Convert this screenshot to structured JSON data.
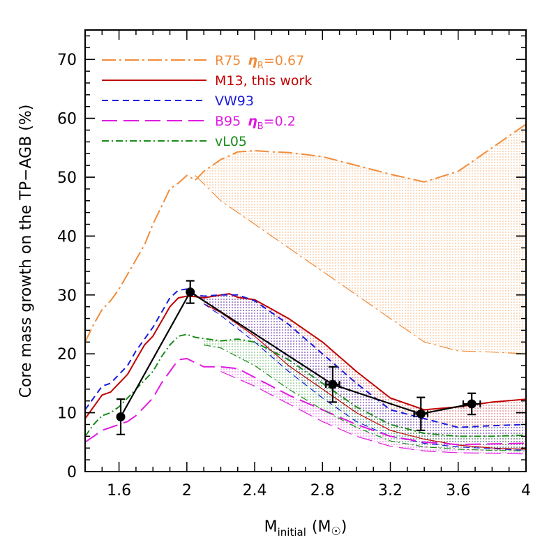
{
  "chart_data": {
    "type": "line",
    "xlabel": "M",
    "xlabel_sub": "initial",
    "xlabel_unit_open": "(M",
    "xlabel_unit_close": ")",
    "ylabel": "Core mass growth on the TP−AGB (%)",
    "xlim": [
      1.4,
      4.0
    ],
    "ylim": [
      0,
      75
    ],
    "xticks": [
      1.6,
      2.0,
      2.4,
      2.8,
      3.2,
      3.6,
      4.0
    ],
    "xtick_labels": [
      "1.6",
      "2",
      "2.4",
      "2.8",
      "3.2",
      "3.6",
      "4"
    ],
    "yticks": [
      0,
      10,
      20,
      30,
      40,
      50,
      60,
      70
    ],
    "ytick_labels": [
      "0",
      "10",
      "20",
      "30",
      "40",
      "50",
      "60",
      "70"
    ],
    "legend_position": "top-left",
    "series": [
      {
        "name": "R75",
        "legend_label": "R75",
        "legend_eta": "η",
        "legend_eta_sub": "R",
        "legend_eta_value": "=0.67",
        "color": "#f28c3a",
        "style": "dash-dot-long",
        "upper_x": [
          1.4,
          1.45,
          1.5,
          1.55,
          1.6,
          1.65,
          1.7,
          1.75,
          1.8,
          1.85,
          1.9,
          1.95,
          2.0,
          2.05,
          2.1,
          2.2,
          2.3,
          2.4,
          2.5,
          2.6,
          2.8,
          3.0,
          3.2,
          3.4,
          3.6,
          3.8,
          4.0
        ],
        "upper_y": [
          22,
          25,
          27.5,
          29,
          31,
          33.5,
          36,
          38.5,
          42,
          45,
          48,
          49,
          50.3,
          49.5,
          51,
          53,
          54.3,
          54.5,
          54.3,
          54.2,
          53.5,
          52,
          50.5,
          49.2,
          51,
          55,
          59
        ],
        "lower_x": [
          2.05,
          2.2,
          2.4,
          2.6,
          2.8,
          3.0,
          3.2,
          3.4,
          3.6,
          3.8,
          4.0
        ],
        "lower_y": [
          50.3,
          46,
          42,
          38,
          34,
          30,
          26,
          22,
          20.5,
          20.3,
          20
        ]
      },
      {
        "name": "M13",
        "legend_label": "M13, this work",
        "color": "#c00000",
        "style": "solid",
        "upper_x": [
          1.4,
          1.45,
          1.5,
          1.55,
          1.6,
          1.65,
          1.7,
          1.75,
          1.8,
          1.85,
          1.9,
          1.95,
          2.0,
          2.05,
          2.1,
          2.2,
          2.25,
          2.3,
          2.4,
          2.6,
          2.8,
          3.0,
          3.2,
          3.4,
          3.6,
          3.8,
          4.0
        ],
        "upper_y": [
          9,
          11,
          13,
          13.5,
          15,
          16.5,
          19,
          21.5,
          23,
          25.5,
          28,
          29.5,
          29.8,
          29.7,
          29.5,
          30,
          30.2,
          29.6,
          29.2,
          26,
          22,
          17,
          12.5,
          10.5,
          11,
          11.8,
          12.3
        ],
        "lower_x": [
          2.1,
          2.2,
          2.4,
          2.6,
          2.8,
          3.0,
          3.2,
          3.4,
          3.6,
          3.8,
          4.0
        ],
        "lower_y": [
          28.5,
          27,
          23,
          18,
          14,
          10,
          7,
          5.5,
          4.5,
          4.0,
          3.8
        ]
      },
      {
        "name": "VW93",
        "legend_label": "VW93",
        "color": "#1a1adc",
        "style": "dashed",
        "upper_x": [
          1.4,
          1.45,
          1.5,
          1.55,
          1.6,
          1.65,
          1.7,
          1.75,
          1.8,
          1.85,
          1.9,
          1.95,
          2.0,
          2.05,
          2.1,
          2.2,
          2.3,
          2.4,
          2.6,
          2.8,
          3.0,
          3.2,
          3.4,
          3.6,
          3.8,
          4.0
        ],
        "upper_y": [
          10.5,
          12.5,
          14.5,
          15,
          16.5,
          18,
          20.5,
          22.5,
          24.5,
          27,
          29.5,
          30.8,
          31,
          30,
          29.8,
          30,
          30,
          29,
          25,
          20,
          15,
          10.5,
          9,
          7.5,
          7.8,
          8
        ],
        "lower_x": [
          2.1,
          2.2,
          2.4,
          2.6,
          2.8,
          3.0,
          3.2,
          3.4,
          3.6,
          3.8,
          4.0
        ],
        "lower_y": [
          28.5,
          26.5,
          22,
          17,
          12.5,
          8.5,
          6.0,
          4.8,
          4.2,
          3.9,
          3.6
        ]
      },
      {
        "name": "B95",
        "legend_label": "B95",
        "legend_eta": "η",
        "legend_eta_sub": "B",
        "legend_eta_value": "=0.2",
        "color": "#e01ae0",
        "style": "long-dashed",
        "upper_x": [
          1.4,
          1.45,
          1.5,
          1.55,
          1.6,
          1.65,
          1.7,
          1.75,
          1.8,
          1.85,
          1.9,
          1.95,
          2.0,
          2.05,
          2.1,
          2.2,
          2.3,
          2.4,
          2.6,
          2.8,
          3.0,
          3.2,
          3.4,
          3.6,
          3.8,
          4.0
        ],
        "upper_y": [
          5,
          6,
          7,
          7.5,
          8,
          8.5,
          9.5,
          11,
          12.5,
          15,
          17,
          19,
          19.2,
          18.5,
          17.8,
          17.8,
          17.5,
          16,
          13,
          10.5,
          8,
          6,
          5,
          4.6,
          4.7,
          4.8
        ],
        "lower_x": [
          2.2,
          2.4,
          2.6,
          2.8,
          3.0,
          3.2,
          3.4,
          3.6,
          3.8,
          4.0
        ],
        "lower_y": [
          17.0,
          14.5,
          11.5,
          8.5,
          6.0,
          4.3,
          3.5,
          3.2,
          3.1,
          3.0
        ]
      },
      {
        "name": "vL05",
        "legend_label": "vL05",
        "color": "#1a8c1a",
        "style": "dash-dot",
        "upper_x": [
          1.4,
          1.45,
          1.5,
          1.55,
          1.6,
          1.65,
          1.7,
          1.75,
          1.8,
          1.85,
          1.9,
          1.95,
          2.0,
          2.05,
          2.1,
          2.2,
          2.3,
          2.4,
          2.6,
          2.8,
          3.0,
          3.2,
          3.4,
          3.6,
          3.8,
          4.0
        ],
        "upper_y": [
          6,
          8,
          9.5,
          10,
          11,
          12.5,
          14,
          15.5,
          17,
          19.5,
          21.5,
          23,
          23.3,
          22.8,
          22.6,
          22.2,
          22.5,
          22,
          19,
          15,
          11,
          8,
          6.5,
          6,
          6,
          6.2
        ],
        "lower_x": [
          2.1,
          2.2,
          2.4,
          2.6,
          2.8,
          3.0,
          3.2,
          3.4,
          3.6,
          3.8,
          4.0
        ],
        "lower_y": [
          21.5,
          21,
          18,
          14,
          10.5,
          7.5,
          5.2,
          4.2,
          3.8,
          3.6,
          3.5
        ]
      }
    ],
    "observations": {
      "color": "#000000",
      "points": [
        {
          "x": 1.61,
          "y": 9.3,
          "yerr": 3.0,
          "xerr": 0.0
        },
        {
          "x": 2.02,
          "y": 30.5,
          "yerr": 1.9,
          "xerr": 0.0
        },
        {
          "x": 2.86,
          "y": 14.8,
          "yerr": 3.0,
          "xerr": 0.04
        },
        {
          "x": 3.38,
          "y": 9.8,
          "yerr": 2.8,
          "xerr": 0.04
        },
        {
          "x": 3.68,
          "y": 11.5,
          "yerr": 1.8,
          "xerr": 0.05
        }
      ]
    }
  }
}
